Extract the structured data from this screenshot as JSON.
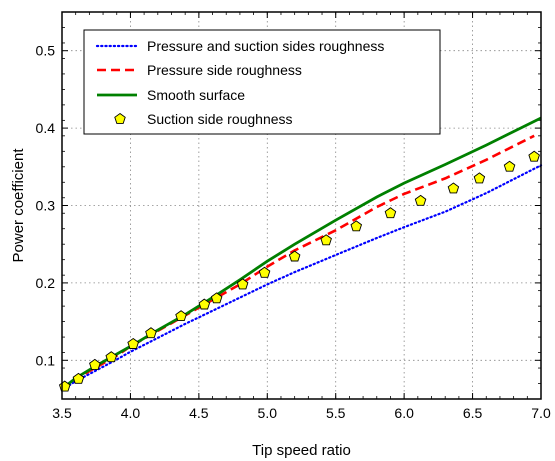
{
  "chart_data": {
    "type": "line",
    "xlabel": "Tip speed ratio",
    "ylabel": "Power coefficient",
    "xlim": [
      3.5,
      7.0
    ],
    "ylim": [
      0.05,
      0.55
    ],
    "grid": true,
    "legend_position": "top-left",
    "x_ticks": [
      {
        "value": 3.5,
        "label": "3.5"
      },
      {
        "value": 4.0,
        "label": "4.0"
      },
      {
        "value": 4.5,
        "label": "4.5"
      },
      {
        "value": 5.0,
        "label": "5.0"
      },
      {
        "value": 5.5,
        "label": "5.5"
      },
      {
        "value": 6.0,
        "label": "6.0"
      },
      {
        "value": 6.5,
        "label": "6.5"
      },
      {
        "value": 7.0,
        "label": "7.0"
      }
    ],
    "y_ticks": [
      {
        "value": 0.1,
        "label": "0.1"
      },
      {
        "value": 0.2,
        "label": "0.2"
      },
      {
        "value": 0.3,
        "label": "0.3"
      },
      {
        "value": 0.4,
        "label": "0.4"
      },
      {
        "value": 0.5,
        "label": "0.5"
      }
    ],
    "series": [
      {
        "name": "Pressure and suction sides roughness",
        "style": "dotted",
        "color": "#0000ff",
        "x": [
          3.5,
          3.6,
          3.75,
          3.9,
          4.0,
          4.2,
          4.4,
          4.6,
          4.8,
          5.0,
          5.2,
          5.5,
          5.8,
          6.0,
          6.3,
          6.6,
          7.0
        ],
        "y": [
          0.062,
          0.073,
          0.087,
          0.101,
          0.111,
          0.129,
          0.147,
          0.164,
          0.181,
          0.198,
          0.214,
          0.236,
          0.258,
          0.272,
          0.292,
          0.316,
          0.352
        ]
      },
      {
        "name": "Pressure side roughness",
        "style": "dashed",
        "color": "#ff0000",
        "x": [
          3.5,
          3.6,
          3.75,
          3.9,
          4.0,
          4.2,
          4.4,
          4.6,
          4.8,
          5.0,
          5.2,
          5.5,
          5.8,
          6.0,
          6.3,
          6.6,
          6.95
        ],
        "y": [
          0.063,
          0.076,
          0.091,
          0.106,
          0.118,
          0.138,
          0.158,
          0.178,
          0.198,
          0.221,
          0.242,
          0.268,
          0.298,
          0.315,
          0.335,
          0.359,
          0.39
        ]
      },
      {
        "name": "Smooth surface",
        "style": "solid",
        "color": "#008000",
        "x": [
          3.5,
          3.6,
          3.75,
          3.9,
          4.0,
          4.2,
          4.4,
          4.6,
          4.8,
          5.0,
          5.2,
          5.5,
          5.8,
          6.0,
          6.3,
          6.6,
          7.0
        ],
        "y": [
          0.063,
          0.077,
          0.093,
          0.108,
          0.118,
          0.139,
          0.159,
          0.181,
          0.204,
          0.228,
          0.25,
          0.281,
          0.311,
          0.329,
          0.353,
          0.378,
          0.413
        ]
      },
      {
        "name": "Suction side roughness",
        "style": "markers",
        "marker": "pentagon",
        "color": "#ffff00",
        "edgecolor": "#000000",
        "x": [
          3.52,
          3.62,
          3.74,
          3.86,
          4.02,
          4.15,
          4.37,
          4.54,
          4.63,
          4.82,
          4.98,
          5.2,
          5.43,
          5.65,
          5.9,
          6.12,
          6.36,
          6.55,
          6.77,
          6.95
        ],
        "y": [
          0.066,
          0.076,
          0.094,
          0.104,
          0.121,
          0.135,
          0.157,
          0.172,
          0.18,
          0.198,
          0.213,
          0.234,
          0.255,
          0.273,
          0.29,
          0.306,
          0.322,
          0.335,
          0.35,
          0.363
        ]
      }
    ]
  }
}
